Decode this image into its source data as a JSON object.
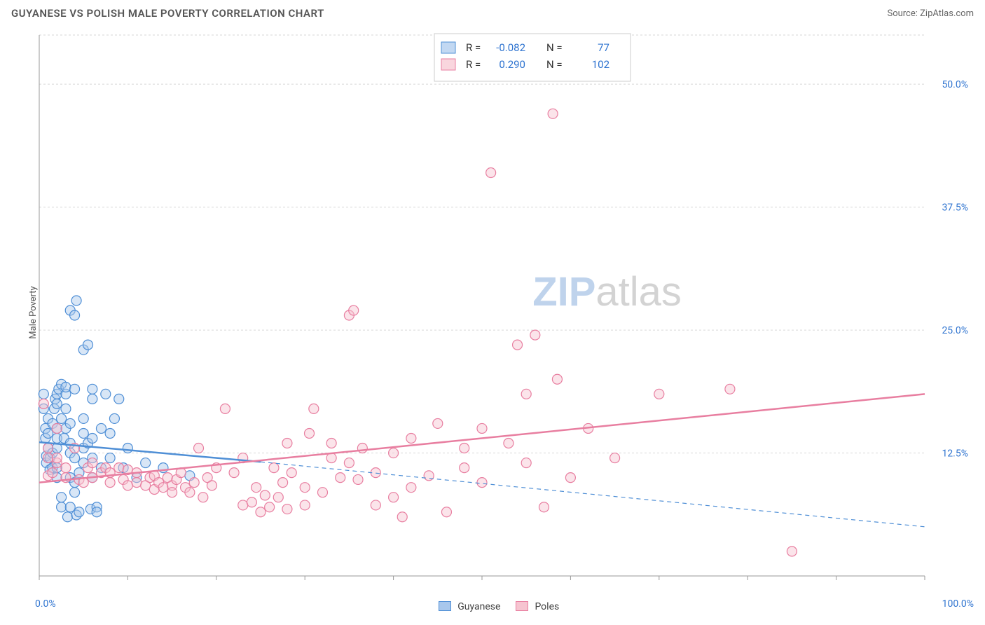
{
  "title": "GUYANESE VS POLISH MALE POVERTY CORRELATION CHART",
  "source": "Source: ZipAtlas.com",
  "ylabel": "Male Poverty",
  "watermark": {
    "text1": "ZIP",
    "text2": "atlas",
    "color1": "#b9cfea",
    "color2": "#cfcfcf",
    "fontsize": 58
  },
  "colors": {
    "blue_fill": "#a8c7ec",
    "blue_stroke": "#4f8fd6",
    "pink_fill": "#f6c4d0",
    "pink_stroke": "#e87ea0",
    "value_text": "#2f74d0",
    "grid": "#d7d7d7",
    "axis": "#999"
  },
  "chart": {
    "type": "scatter",
    "xlim": [
      0,
      100
    ],
    "ylim": [
      0,
      55
    ],
    "y_ticks": [
      12.5,
      25.0,
      37.5,
      50.0
    ],
    "y_tick_labels": [
      "12.5%",
      "25.0%",
      "37.5%",
      "50.0%"
    ],
    "x_tick_positions": [
      0,
      10,
      20,
      30,
      40,
      50,
      60,
      70,
      80,
      90,
      100
    ],
    "x_axis_labels": {
      "left": "0.0%",
      "right": "100.0%"
    },
    "marker_radius": 7,
    "marker_fill_opacity": 0.45,
    "marker_stroke_width": 1.2,
    "trend_line_width": 2.5,
    "background": "#ffffff"
  },
  "stats_legend": {
    "r_label": "R =",
    "n_label": "N =",
    "rows": [
      {
        "swatch": "blue",
        "r": "-0.082",
        "n": "77"
      },
      {
        "swatch": "pink",
        "r": "0.290",
        "n": "102"
      }
    ]
  },
  "series": [
    {
      "name": "Guyanese",
      "color_key": "blue",
      "trend": {
        "x1": 0,
        "y1": 13.6,
        "x2": 25,
        "y2": 11.6,
        "dash_x2": 100,
        "dash_y2": 5.0
      },
      "points": [
        [
          0.5,
          17
        ],
        [
          0.5,
          18.5
        ],
        [
          0.7,
          15
        ],
        [
          0.7,
          14
        ],
        [
          0.8,
          11.5
        ],
        [
          0.8,
          12.2
        ],
        [
          1,
          13
        ],
        [
          1,
          14.5
        ],
        [
          1,
          16
        ],
        [
          1.2,
          12
        ],
        [
          1.2,
          10.8
        ],
        [
          1.5,
          11
        ],
        [
          1.5,
          12.5
        ],
        [
          1.5,
          15.5
        ],
        [
          1.7,
          17
        ],
        [
          1.8,
          18
        ],
        [
          2,
          10
        ],
        [
          2,
          11
        ],
        [
          2,
          13
        ],
        [
          2,
          14
        ],
        [
          2,
          15
        ],
        [
          2,
          17.5
        ],
        [
          2,
          18.5
        ],
        [
          2.2,
          19
        ],
        [
          2.5,
          19.5
        ],
        [
          2.5,
          16
        ],
        [
          2.5,
          7
        ],
        [
          2.5,
          8
        ],
        [
          2.8,
          14
        ],
        [
          3,
          15
        ],
        [
          3,
          17
        ],
        [
          3,
          18.5
        ],
        [
          3,
          19.2
        ],
        [
          3.2,
          6
        ],
        [
          3.5,
          7
        ],
        [
          3.5,
          10
        ],
        [
          3.5,
          12.5
        ],
        [
          3.5,
          13.5
        ],
        [
          3.5,
          15.5
        ],
        [
          4,
          19
        ],
        [
          4,
          8.5
        ],
        [
          4,
          9.5
        ],
        [
          4,
          12
        ],
        [
          4.2,
          6.2
        ],
        [
          4.5,
          6.5
        ],
        [
          4.5,
          10.5
        ],
        [
          5,
          13
        ],
        [
          5,
          11.5
        ],
        [
          5,
          14.5
        ],
        [
          5,
          16
        ],
        [
          5,
          23
        ],
        [
          5.5,
          13.5
        ],
        [
          5.5,
          23.5
        ],
        [
          5.8,
          6.8
        ],
        [
          6,
          18
        ],
        [
          6,
          19
        ],
        [
          6,
          14
        ],
        [
          6,
          12
        ],
        [
          6,
          10
        ],
        [
          6.5,
          7
        ],
        [
          6.5,
          6.5
        ],
        [
          3.5,
          27
        ],
        [
          4.2,
          28
        ],
        [
          4,
          26.5
        ],
        [
          7,
          15
        ],
        [
          7,
          11
        ],
        [
          7.5,
          18.5
        ],
        [
          8,
          14.5
        ],
        [
          8,
          12
        ],
        [
          8.5,
          16
        ],
        [
          9,
          18
        ],
        [
          9.5,
          11
        ],
        [
          10,
          13
        ],
        [
          11,
          10
        ],
        [
          12,
          11.5
        ],
        [
          14,
          11
        ],
        [
          17,
          10.2
        ]
      ]
    },
    {
      "name": "Poles",
      "color_key": "pink",
      "trend": {
        "x1": 0,
        "y1": 9.5,
        "x2": 100,
        "y2": 18.5
      },
      "points": [
        [
          0.5,
          17.5
        ],
        [
          1,
          10.2
        ],
        [
          1,
          12
        ],
        [
          1,
          13
        ],
        [
          1.5,
          10.5
        ],
        [
          2,
          11.5
        ],
        [
          2,
          12
        ],
        [
          2,
          15
        ],
        [
          3,
          11
        ],
        [
          3,
          10
        ],
        [
          4,
          13
        ],
        [
          4.5,
          9.8
        ],
        [
          5,
          9.5
        ],
        [
          5.5,
          11
        ],
        [
          6,
          10
        ],
        [
          6,
          11.5
        ],
        [
          7,
          10.5
        ],
        [
          7.5,
          11
        ],
        [
          8,
          9.5
        ],
        [
          8,
          10.5
        ],
        [
          9,
          11
        ],
        [
          9.5,
          9.8
        ],
        [
          10,
          9.2
        ],
        [
          10,
          10.8
        ],
        [
          11,
          9.5
        ],
        [
          11,
          10.5
        ],
        [
          12,
          9.2
        ],
        [
          12.5,
          10
        ],
        [
          13,
          8.8
        ],
        [
          13,
          10.2
        ],
        [
          13.5,
          9.5
        ],
        [
          14,
          9
        ],
        [
          14.5,
          10
        ],
        [
          15,
          9.2
        ],
        [
          15,
          8.5
        ],
        [
          15.5,
          9.8
        ],
        [
          16,
          10.5
        ],
        [
          16.5,
          9
        ],
        [
          17,
          8.5
        ],
        [
          17.5,
          9.5
        ],
        [
          18,
          13
        ],
        [
          18.5,
          8
        ],
        [
          19,
          10
        ],
        [
          19.5,
          9.2
        ],
        [
          20,
          11
        ],
        [
          21,
          17
        ],
        [
          22,
          10.5
        ],
        [
          23,
          7.2
        ],
        [
          23,
          12
        ],
        [
          24,
          7.5
        ],
        [
          24.5,
          9
        ],
        [
          25,
          6.5
        ],
        [
          25.5,
          8.2
        ],
        [
          26,
          7
        ],
        [
          26.5,
          11
        ],
        [
          27,
          8
        ],
        [
          27.5,
          9.5
        ],
        [
          28,
          6.8
        ],
        [
          28.5,
          10.5
        ],
        [
          30,
          7.2
        ],
        [
          28,
          13.5
        ],
        [
          30,
          9
        ],
        [
          30.5,
          14.5
        ],
        [
          31,
          17
        ],
        [
          32,
          8.5
        ],
        [
          33,
          12
        ],
        [
          33,
          13.5
        ],
        [
          34,
          10
        ],
        [
          35,
          11.5
        ],
        [
          35,
          26.5
        ],
        [
          35.5,
          27
        ],
        [
          36,
          9.8
        ],
        [
          36.5,
          13
        ],
        [
          38,
          7.2
        ],
        [
          38,
          10.5
        ],
        [
          40,
          8
        ],
        [
          40,
          12.5
        ],
        [
          41,
          6
        ],
        [
          42,
          9
        ],
        [
          42,
          14
        ],
        [
          44,
          10.2
        ],
        [
          45,
          15.5
        ],
        [
          46,
          6.5
        ],
        [
          48,
          11
        ],
        [
          48,
          13
        ],
        [
          50,
          9.5
        ],
        [
          50,
          15
        ],
        [
          51,
          41
        ],
        [
          53,
          13.5
        ],
        [
          54,
          23.5
        ],
        [
          55,
          11.5
        ],
        [
          55,
          18.5
        ],
        [
          56,
          24.5
        ],
        [
          57,
          7
        ],
        [
          58,
          47
        ],
        [
          58.5,
          20
        ],
        [
          60,
          10
        ],
        [
          62,
          15
        ],
        [
          65,
          12
        ],
        [
          70,
          18.5
        ],
        [
          78,
          19
        ],
        [
          85,
          2.5
        ]
      ]
    }
  ],
  "bottom_legend": [
    {
      "swatch": "blue",
      "label": "Guyanese"
    },
    {
      "swatch": "pink",
      "label": "Poles"
    }
  ]
}
